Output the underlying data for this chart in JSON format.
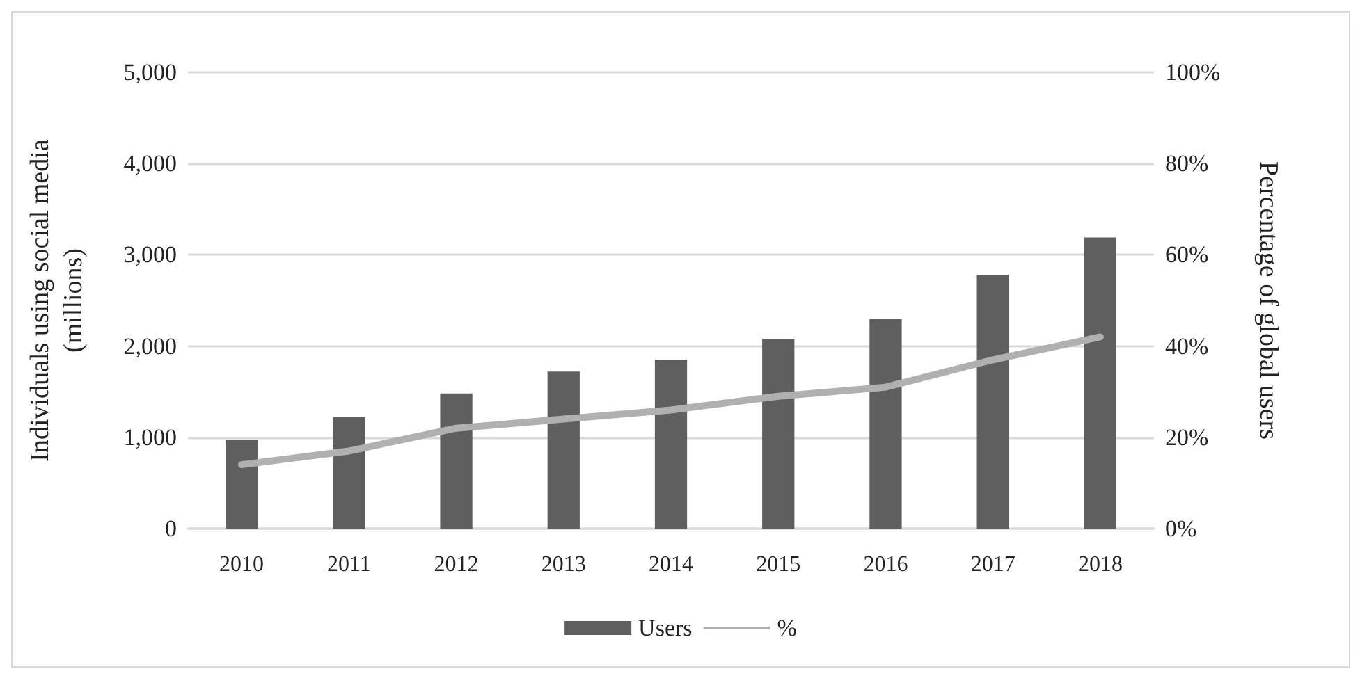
{
  "chart_data": {
    "type": "bar",
    "ylabel": "Individuals using social media (millions)",
    "y2label": "Percentage of global users",
    "categories": [
      "2010",
      "2011",
      "2012",
      "2013",
      "2014",
      "2015",
      "2016",
      "2017",
      "2018"
    ],
    "series": [
      {
        "name": "Users",
        "color": "#5f5f5f",
        "values": [
          970,
          1220,
          1480,
          1720,
          1850,
          2080,
          2300,
          2780,
          3190
        ]
      },
      {
        "name": "%",
        "type": "line",
        "axis": "y2",
        "color": "#b0b0b0",
        "values": [
          14,
          17,
          22,
          24,
          26,
          29,
          31,
          37,
          42
        ]
      }
    ],
    "ylim": [
      0,
      5000
    ],
    "yticks": [
      {
        "value": 0,
        "label": "0"
      },
      {
        "value": 1000,
        "label": "1,000"
      },
      {
        "value": 2000,
        "label": "2,000"
      },
      {
        "value": 3000,
        "label": "3,000"
      },
      {
        "value": 4000,
        "label": "4,000"
      },
      {
        "value": 5000,
        "label": "5,000"
      }
    ],
    "y2lim": [
      0,
      100
    ],
    "y2ticks": [
      {
        "value": 0,
        "label": "0%"
      },
      {
        "value": 20,
        "label": "20%"
      },
      {
        "value": 40,
        "label": "40%"
      },
      {
        "value": 60,
        "label": "60%"
      },
      {
        "value": 80,
        "label": "80%"
      },
      {
        "value": 100,
        "label": "100%"
      }
    ],
    "grid": "y",
    "legend": "bottom",
    "marker": "none",
    "line_style": "solid"
  }
}
